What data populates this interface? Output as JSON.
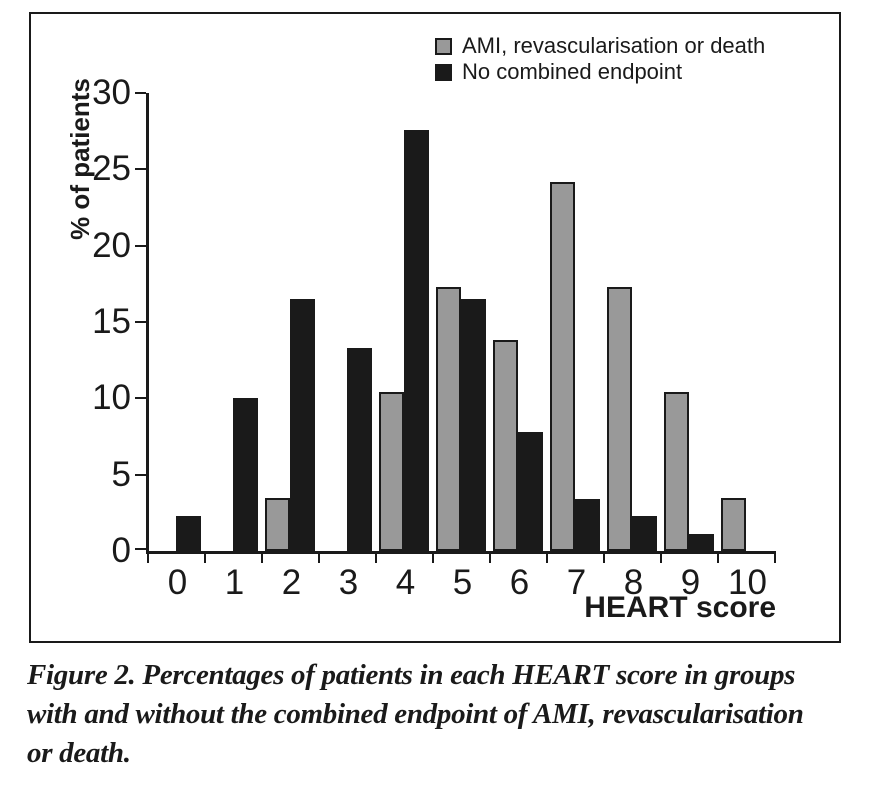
{
  "chart_data": {
    "type": "bar",
    "title": "",
    "xlabel": "HEART score",
    "ylabel": "% of patients",
    "categories": [
      "0",
      "1",
      "2",
      "3",
      "4",
      "5",
      "6",
      "7",
      "8",
      "9",
      "10"
    ],
    "series": [
      {
        "name": "AMI, revascularisation or death",
        "color": "#999999",
        "values": [
          0,
          0,
          3.5,
          0,
          10.4,
          17.3,
          13.8,
          24.2,
          17.3,
          10.4,
          3.5
        ]
      },
      {
        "name": "No combined endpoint",
        "color": "#1a1a1a",
        "values": [
          2.3,
          10.0,
          16.5,
          13.3,
          27.6,
          16.5,
          7.8,
          3.4,
          2.3,
          1.1,
          0
        ]
      }
    ],
    "ylim": [
      0,
      30
    ],
    "yticks": [
      0,
      5,
      10,
      15,
      20,
      25,
      30
    ],
    "grid": false,
    "legend_position": "top-right"
  },
  "figure_caption": {
    "lines": [
      "Figure 2. Percentages of patients in each HEART score in groups",
      "with and without the combined endpoint of AMI, revascularisation",
      "or death."
    ]
  },
  "colors": {
    "ink": "#1a1a1a",
    "gray_bar": "#999999",
    "background": "#ffffff"
  }
}
